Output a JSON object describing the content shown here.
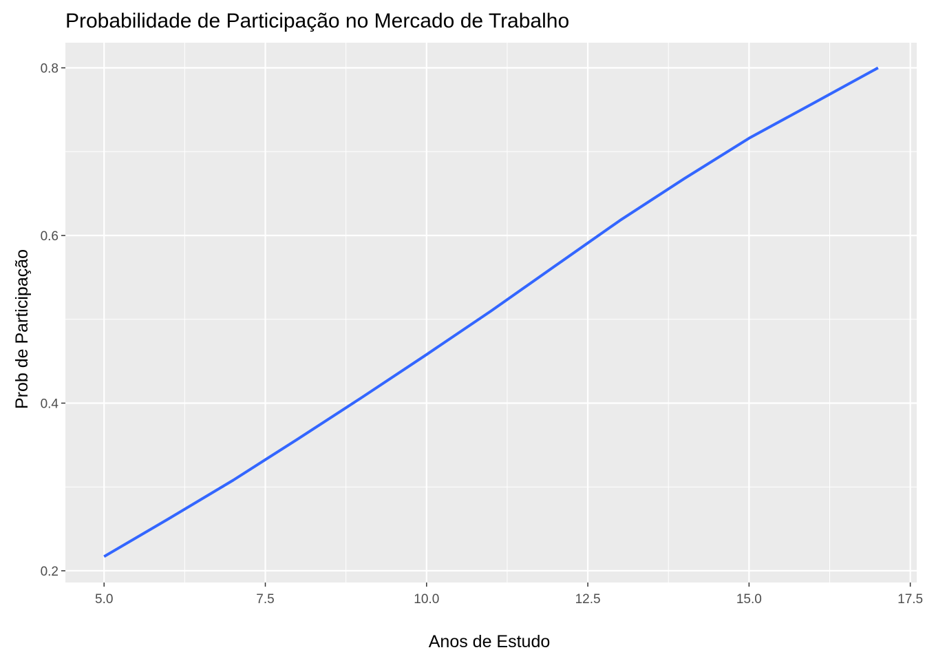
{
  "chart_data": {
    "type": "line",
    "title": "Probabilidade de Participação no Mercado de Trabalho",
    "xlabel": "Anos de Estudo",
    "ylabel": "Prob de Participação",
    "xlim": [
      4.4,
      17.6
    ],
    "ylim": [
      0.186,
      0.83
    ],
    "xticks": [
      5.0,
      7.5,
      10.0,
      12.5,
      15.0,
      17.5
    ],
    "xtick_labels": [
      "5.0",
      "7.5",
      "10.0",
      "12.5",
      "15.0",
      "17.5"
    ],
    "yticks": [
      0.2,
      0.4,
      0.6,
      0.8
    ],
    "ytick_labels": [
      "0.2",
      "0.4",
      "0.6",
      "0.8"
    ],
    "grid": true,
    "legend": "none",
    "background_color": "#ebebeb",
    "grid_color": "#ffffff",
    "line_color": "#3366ff",
    "series": [
      {
        "x": [
          5,
          6,
          7,
          8,
          9,
          10,
          11,
          12,
          13,
          14,
          15,
          16,
          17
        ],
        "values": [
          0.217,
          0.262,
          0.308,
          0.357,
          0.407,
          0.458,
          0.51,
          0.564,
          0.618,
          0.668,
          0.716,
          0.758,
          0.8
        ]
      }
    ]
  }
}
